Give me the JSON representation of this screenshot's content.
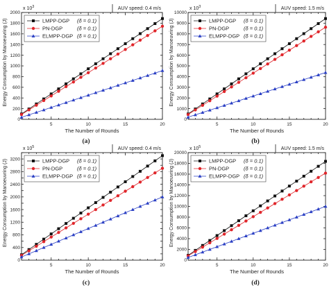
{
  "figure": {
    "x_ticks": [
      5,
      10,
      15,
      20
    ],
    "x_tick_labels": [
      "5",
      "10",
      "15",
      "20"
    ],
    "y_label": "Energy Consumption by Manoeuvring (J)"
  },
  "chart_data": [
    {
      "type": "line",
      "caption": "(a)",
      "speed_label": "AUV speed: 0.4 m/s",
      "xlabel": "The Number of Rounds",
      "ylabel": "Energy Consumption by Manoeuvring (J)",
      "y_multiplier": "x 10",
      "y_multiplier_exp": "3",
      "xlim": [
        1,
        20
      ],
      "ylim": [
        0,
        2000
      ],
      "yticks": [
        0,
        200,
        400,
        600,
        800,
        1000,
        1200,
        1400,
        1600,
        1800,
        2000
      ],
      "y_tick_labels": [
        "0",
        "200",
        "400",
        "600",
        "800",
        "1000",
        "1200",
        "1400",
        "1600",
        "1800",
        "2000"
      ],
      "grid": false,
      "legend_position": "top-left",
      "x": [
        1,
        2,
        3,
        4,
        5,
        6,
        7,
        8,
        9,
        10,
        11,
        12,
        13,
        14,
        15,
        16,
        17,
        18,
        19,
        20
      ],
      "series": [
        {
          "name": "LMPP-DGP",
          "delta": "(δ = 0.1)",
          "marker": "square",
          "color": "#111111",
          "values": [
            100,
            194,
            288,
            382,
            476,
            570,
            664,
            758,
            852,
            946,
            1040,
            1134,
            1228,
            1322,
            1416,
            1510,
            1604,
            1698,
            1792,
            1886
          ]
        },
        {
          "name": "PN-DGP",
          "delta": "(δ = 0.1)",
          "marker": "circle",
          "color": "#e0262b",
          "values": [
            90,
            177,
            264,
            351,
            438,
            525,
            612,
            699,
            786,
            873,
            960,
            1047,
            1134,
            1221,
            1308,
            1395,
            1482,
            1569,
            1656,
            1743
          ]
        },
        {
          "name": "ELMPP-DGP",
          "delta": "(δ = 0.1)",
          "marker": "triangle",
          "color": "#2a3fc4",
          "values": [
            38,
            84,
            130,
            176,
            222,
            268,
            314,
            360,
            406,
            452,
            498,
            544,
            590,
            636,
            682,
            728,
            774,
            820,
            866,
            912
          ]
        }
      ]
    },
    {
      "type": "line",
      "caption": "(b)",
      "speed_label": "AUV speed: 1.5 m/s",
      "xlabel": "The Number of Rounds",
      "ylabel": "Energy Consumption by Manoeuvring (J)",
      "y_multiplier": "x 10",
      "y_multiplier_exp": "3",
      "xlim": [
        1,
        20
      ],
      "ylim": [
        0,
        10000
      ],
      "yticks": [
        0,
        1000,
        2000,
        3000,
        4000,
        5000,
        6000,
        7000,
        8000,
        9000,
        10000
      ],
      "y_tick_labels": [
        "0",
        "1000",
        "2000",
        "3000",
        "4000",
        "5000",
        "6000",
        "7000",
        "8000",
        "9000",
        "10000"
      ],
      "grid": false,
      "legend_position": "top-left",
      "x": [
        1,
        2,
        3,
        4,
        5,
        6,
        7,
        8,
        9,
        10,
        11,
        12,
        13,
        14,
        15,
        16,
        17,
        18,
        19,
        20
      ],
      "series": [
        {
          "name": "LMPP-DGP",
          "delta": "(δ = 0.1)",
          "marker": "square",
          "color": "#111111",
          "values": [
            500,
            970,
            1440,
            1910,
            2380,
            2850,
            3320,
            3790,
            4260,
            4730,
            5200,
            5670,
            6140,
            6610,
            7080,
            7550,
            8020,
            8490,
            8960,
            9430
          ]
        },
        {
          "name": "PN-DGP",
          "delta": "(δ = 0.1)",
          "marker": "circle",
          "color": "#e0262b",
          "values": [
            450,
            880,
            1310,
            1740,
            2170,
            2600,
            3030,
            3460,
            3890,
            4320,
            4750,
            5180,
            5610,
            6040,
            6470,
            6900,
            7330,
            7760,
            8190,
            8620
          ]
        },
        {
          "name": "ELMPP-DGP",
          "delta": "(δ = 0.1)",
          "marker": "triangle",
          "color": "#2a3fc4",
          "values": [
            200,
            420,
            640,
            860,
            1080,
            1300,
            1520,
            1740,
            1960,
            2180,
            2400,
            2620,
            2840,
            3060,
            3280,
            3500,
            3720,
            3940,
            4160,
            4380
          ]
        }
      ]
    },
    {
      "type": "line",
      "caption": "(c)",
      "speed_label": "AUV speed: 0.4 m/s",
      "xlabel": "The Number of Rounds",
      "ylabel": "Energy Consumption by Manoeuvring (J)",
      "y_multiplier": "x 10",
      "y_multiplier_exp": "5",
      "xlim": [
        1,
        20
      ],
      "ylim": [
        0,
        3400
      ],
      "yticks": [
        0,
        200,
        400,
        600,
        800,
        1000,
        1200,
        1400,
        1600,
        1800,
        2000,
        2200,
        2400,
        2600,
        2800,
        3000,
        3200,
        3400
      ],
      "y_tick_labels": [
        "0",
        "",
        "400",
        "",
        "800",
        "",
        "1200",
        "",
        "1600",
        "",
        "2000",
        "",
        "2400",
        "",
        "2800",
        "",
        "3200",
        ""
      ],
      "grid": false,
      "legend_position": "top-left",
      "x": [
        1,
        2,
        3,
        4,
        5,
        6,
        7,
        8,
        9,
        10,
        11,
        12,
        13,
        14,
        15,
        16,
        17,
        18,
        19,
        20
      ],
      "series": [
        {
          "name": "LMPP-DGP",
          "delta": "(δ = 0.1)",
          "marker": "square",
          "color": "#111111",
          "values": [
            170,
            335,
            500,
            665,
            830,
            995,
            1160,
            1325,
            1490,
            1655,
            1820,
            1985,
            2150,
            2315,
            2480,
            2645,
            2810,
            2975,
            3140,
            3305
          ]
        },
        {
          "name": "PN-DGP",
          "delta": "(δ = 0.1)",
          "marker": "circle",
          "color": "#e0262b",
          "values": [
            150,
            295,
            440,
            585,
            730,
            875,
            1020,
            1165,
            1310,
            1455,
            1600,
            1745,
            1890,
            2035,
            2180,
            2325,
            2470,
            2615,
            2760,
            2905
          ]
        },
        {
          "name": "ELMPP-DGP",
          "delta": "(δ = 0.1)",
          "marker": "triangle",
          "color": "#2a3fc4",
          "values": [
            100,
            200,
            300,
            400,
            500,
            600,
            700,
            800,
            900,
            1000,
            1100,
            1200,
            1300,
            1400,
            1500,
            1600,
            1700,
            1800,
            1900,
            2000
          ]
        }
      ]
    },
    {
      "type": "line",
      "caption": "(d)",
      "speed_label": "AUV speed: 1.5 m/s",
      "xlabel": "The Number of Rounds",
      "ylabel": "Energy Consumption by Manoeuvring (J)",
      "y_multiplier": "x 10",
      "y_multiplier_exp": "5",
      "xlim": [
        1,
        20
      ],
      "ylim": [
        0,
        20000
      ],
      "yticks": [
        0,
        2000,
        4000,
        6000,
        8000,
        10000,
        12000,
        14000,
        16000,
        18000,
        20000
      ],
      "y_tick_labels": [
        "0",
        "2000",
        "4000",
        "6000",
        "8000",
        "10000",
        "12000",
        "14000",
        "16000",
        "18000",
        "20000"
      ],
      "grid": false,
      "legend_position": "top-left",
      "x": [
        1,
        2,
        3,
        4,
        5,
        6,
        7,
        8,
        9,
        10,
        11,
        12,
        13,
        14,
        15,
        16,
        17,
        18,
        19,
        20
      ],
      "series": [
        {
          "name": "LMPP-DGP",
          "delta": "(δ = 0.1)",
          "marker": "square",
          "color": "#111111",
          "values": [
            900,
            1820,
            2740,
            3660,
            4580,
            5500,
            6420,
            7340,
            8260,
            9180,
            10100,
            11020,
            11940,
            12860,
            13780,
            14700,
            15620,
            16540,
            17460,
            18380
          ]
        },
        {
          "name": "PN-DGP",
          "delta": "(δ = 0.1)",
          "marker": "circle",
          "color": "#e0262b",
          "values": [
            800,
            1610,
            2420,
            3230,
            4040,
            4850,
            5660,
            6470,
            7280,
            8090,
            8900,
            9710,
            10520,
            11330,
            12140,
            12950,
            13760,
            14570,
            15380,
            16190
          ]
        },
        {
          "name": "ELMPP-DGP",
          "delta": "(δ = 0.1)",
          "marker": "triangle",
          "color": "#2a3fc4",
          "values": [
            500,
            1000,
            1500,
            2000,
            2500,
            3000,
            3500,
            4000,
            4500,
            5000,
            5500,
            6000,
            6500,
            7000,
            7500,
            8000,
            8500,
            9000,
            9500,
            10000
          ]
        }
      ]
    }
  ]
}
